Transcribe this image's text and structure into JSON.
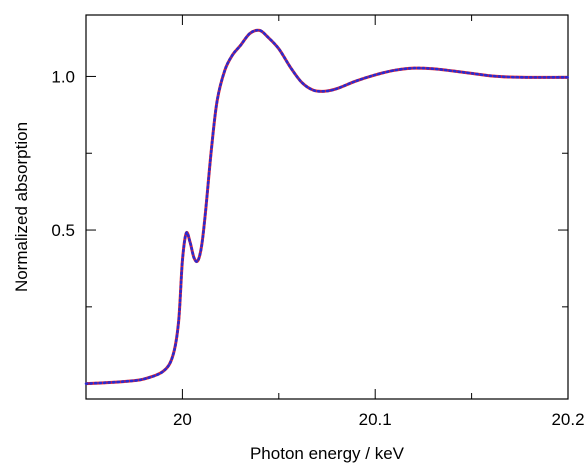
{
  "chart_data": {
    "type": "line",
    "title": "",
    "xlabel": "Photon energy / keV",
    "ylabel": "Normalized absorption",
    "xlim": [
      19.95,
      20.2
    ],
    "ylim": [
      -0.05,
      1.2
    ],
    "x_ticks": [
      20,
      20.1,
      20.2
    ],
    "x_tick_labels": [
      "20",
      "20.1",
      "20.2"
    ],
    "x_minor_ticks": [
      19.95,
      20.05,
      20.15
    ],
    "y_ticks": [
      0.5,
      1.0
    ],
    "y_tick_labels": [
      "0.5",
      "1.0"
    ],
    "y_minor_ticks": [
      0.25,
      0.75
    ],
    "grid": false,
    "series": [
      {
        "style": "solid",
        "color": "#e8262a",
        "x": [
          19.95,
          19.96,
          19.97,
          19.98,
          19.99,
          19.995,
          19.998,
          20.0,
          20.002,
          20.004,
          20.006,
          20.008,
          20.01,
          20.012,
          20.015,
          20.018,
          20.022,
          20.026,
          20.03,
          20.035,
          20.04,
          20.044,
          20.05,
          20.056,
          20.062,
          20.068,
          20.074,
          20.08,
          20.09,
          20.1,
          20.11,
          20.12,
          20.13,
          20.14,
          20.15,
          20.16,
          20.17,
          20.18,
          20.19,
          20.2
        ],
        "y": [
          0.0,
          0.003,
          0.007,
          0.015,
          0.04,
          0.09,
          0.2,
          0.4,
          0.49,
          0.46,
          0.41,
          0.4,
          0.45,
          0.56,
          0.76,
          0.92,
          1.02,
          1.07,
          1.1,
          1.14,
          1.15,
          1.13,
          1.09,
          1.03,
          0.98,
          0.955,
          0.952,
          0.96,
          0.985,
          1.005,
          1.02,
          1.027,
          1.025,
          1.018,
          1.01,
          1.002,
          0.998,
          0.997,
          0.997,
          0.997
        ]
      },
      {
        "style": "dotted",
        "color": "#2a2ad0",
        "x": [
          19.95,
          19.96,
          19.97,
          19.98,
          19.99,
          19.995,
          19.998,
          20.0,
          20.002,
          20.004,
          20.006,
          20.008,
          20.01,
          20.012,
          20.015,
          20.018,
          20.022,
          20.026,
          20.03,
          20.035,
          20.04,
          20.044,
          20.05,
          20.056,
          20.062,
          20.068,
          20.074,
          20.08,
          20.09,
          20.1,
          20.11,
          20.12,
          20.13,
          20.14,
          20.15,
          20.16,
          20.17,
          20.18,
          20.19,
          20.2
        ],
        "y": [
          0.0,
          0.003,
          0.007,
          0.015,
          0.04,
          0.09,
          0.2,
          0.4,
          0.49,
          0.46,
          0.41,
          0.4,
          0.45,
          0.56,
          0.76,
          0.92,
          1.02,
          1.07,
          1.1,
          1.14,
          1.15,
          1.13,
          1.09,
          1.03,
          0.98,
          0.955,
          0.952,
          0.96,
          0.985,
          1.005,
          1.02,
          1.027,
          1.025,
          1.018,
          1.01,
          1.002,
          0.998,
          0.997,
          0.997,
          0.997
        ]
      }
    ]
  }
}
